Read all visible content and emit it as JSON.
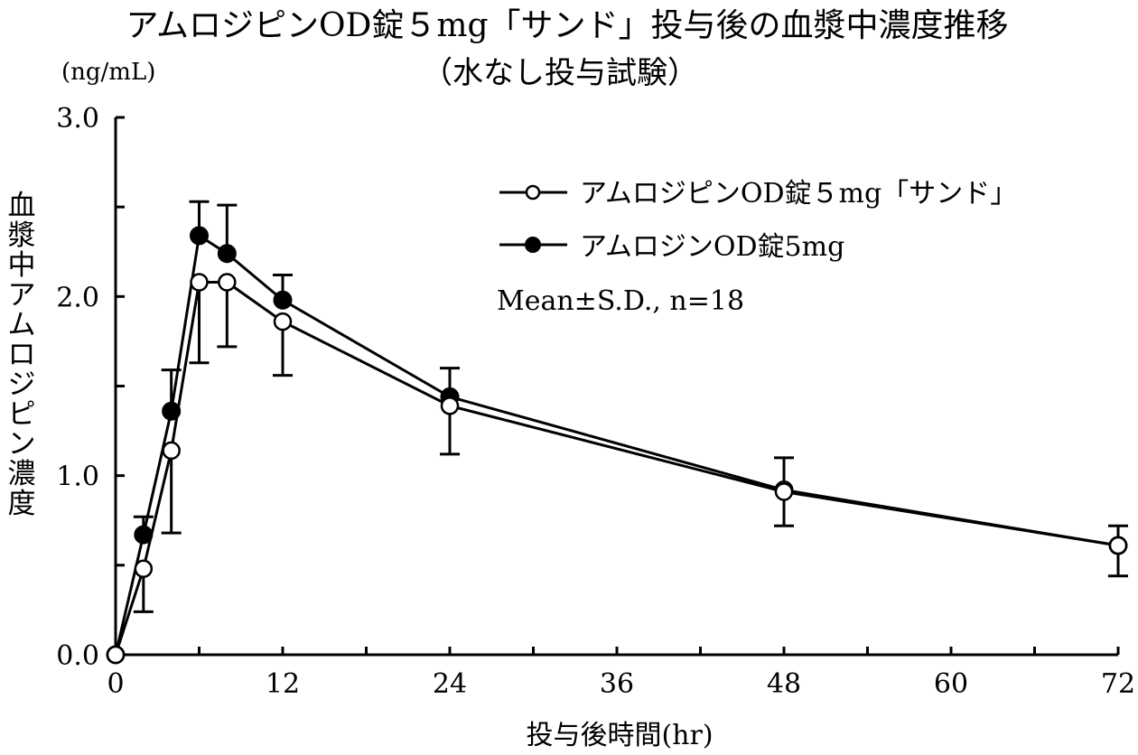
{
  "chart_data": {
    "type": "line",
    "title": "アムロジピンOD錠５mg「サンド」投与後の血漿中濃度推移",
    "subtitle": "（水なし投与試験）",
    "unit_label": "(ng/mL)",
    "xlabel": "投与後時間(hr)",
    "ylabel": "血漿中アムロジピン濃度",
    "xlim": [
      0,
      72
    ],
    "ylim": [
      0,
      3.0
    ],
    "x_ticks": [
      0,
      12,
      24,
      36,
      48,
      60,
      72
    ],
    "x_minor_ticks": [
      6,
      18,
      30,
      42,
      54,
      66
    ],
    "x_tick_labels": [
      "0",
      "12",
      "24",
      "36",
      "48",
      "60",
      "72"
    ],
    "y_ticks": [
      0,
      1.0,
      2.0,
      3.0
    ],
    "y_minor_ticks": [
      0.5,
      1.5,
      2.5
    ],
    "y_tick_labels": [
      "0.0",
      "1.0",
      "2.0",
      "3.0"
    ],
    "grid": false,
    "legend_position": "top-right",
    "annotation": "Mean±S.D., n=18",
    "x": [
      0,
      2,
      4,
      6,
      8,
      12,
      24,
      48,
      72
    ],
    "series": [
      {
        "name": "アムロジピンOD錠５mg「サンド」",
        "marker": "open-circle",
        "values": [
          0,
          0.48,
          1.14,
          2.08,
          2.08,
          1.86,
          1.39,
          0.91,
          0.61
        ],
        "sd_lower": [
          null,
          0.24,
          0.68,
          1.63,
          1.72,
          1.56,
          1.12,
          0.72,
          0.44
        ]
      },
      {
        "name": "アムロジンOD錠5mg",
        "marker": "filled-circle",
        "values": [
          0,
          0.67,
          1.36,
          2.34,
          2.24,
          1.98,
          1.44,
          0.92,
          0.61
        ],
        "sd_upper": [
          null,
          0.77,
          1.59,
          2.53,
          2.51,
          2.12,
          1.6,
          1.1,
          0.72
        ]
      }
    ]
  }
}
